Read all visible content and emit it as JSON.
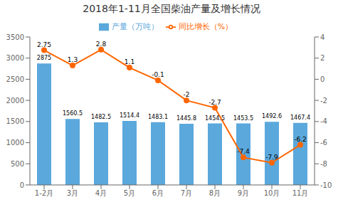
{
  "chart_data": {
    "type": "bar",
    "title": "2018年1-11月全国柴油产量及增长情况",
    "categories": [
      "1-2月",
      "3月",
      "4月",
      "5月",
      "6月",
      "7月",
      "8月",
      "9月",
      "10月",
      "11月"
    ],
    "series": [
      {
        "name": "产量（万吨）",
        "type": "bar",
        "color": "#5BA8DC",
        "values": [
          2875,
          1560.5,
          1482.5,
          1514.4,
          1483.1,
          1445.8,
          1454.5,
          1453.5,
          1492.6,
          1467.4
        ]
      },
      {
        "name": "同比增长（%）",
        "type": "line",
        "color": "#FF6600",
        "marker": "circle",
        "axis": "y2",
        "values": [
          2.75,
          1.3,
          2.8,
          1.1,
          -0.1,
          -2,
          -2.7,
          -7.4,
          -7.9,
          -6.2
        ]
      }
    ],
    "ylim": [
      0,
      3500
    ],
    "yticks": [
      0,
      500,
      1000,
      1500,
      2000,
      2500,
      3000,
      3500
    ],
    "y2lim": [
      -10,
      4
    ],
    "y2ticks": [
      -10,
      -8,
      -6,
      -4,
      -2,
      0,
      2,
      4
    ],
    "data_labels": true,
    "grid": false,
    "legend": "top"
  }
}
